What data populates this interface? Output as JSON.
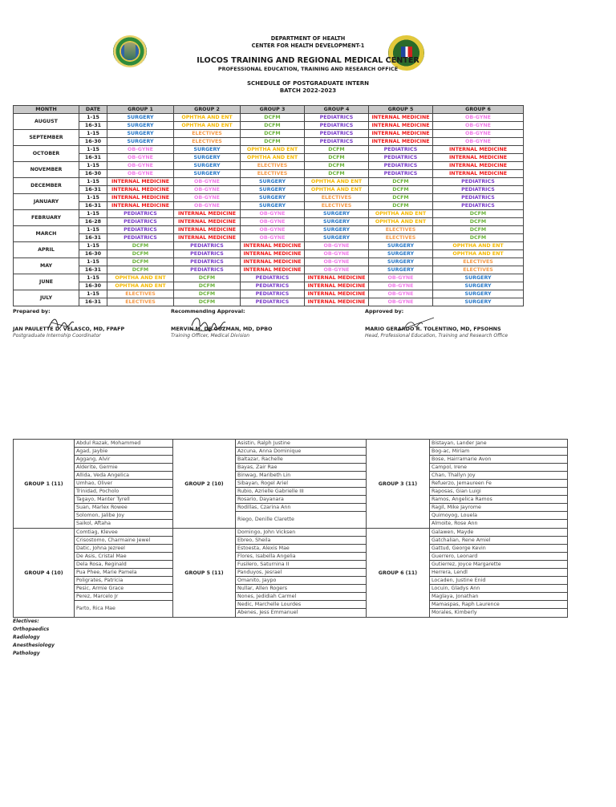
{
  "header": {
    "line1": "DEPARTMENT OF HEALTH",
    "line2": "CENTER FOR HEALTH DEVELOPMENT-1",
    "line3": "ILOCOS TRAINING AND REGIONAL MEDICAL CENTER",
    "line4": "PROFESSIONAL EDUCATION, TRAINING AND RESEARCH OFFICE",
    "line5": "SCHEDULE OF POSTGRADUATE INTERN",
    "line6": "BATCH 2022-2023",
    "logo_left": "ittrmc-seal-icon",
    "logo_right": "doh-seal-icon"
  },
  "colors": {
    "SURGERY": "#2878c8",
    "OPHTHA AND ENT": "#f5b800",
    "DCFM": "#6ab23a",
    "PEDIATRICS": "#7a3cc8",
    "INTERNAL MEDICINE": "#f01818",
    "OB-GYNE": "#f07ae8",
    "ELECTIVES": "#f59a48",
    "header_bg": "#c9c9c9"
  },
  "schedule": {
    "columns": [
      "MONTH",
      "DATE",
      "GROUP 1",
      "GROUP 2",
      "GROUP 3",
      "GROUP 4",
      "GROUP 5",
      "GROUP 6"
    ],
    "months": [
      {
        "month": "AUGUST",
        "rows": [
          {
            "date": "1-15",
            "g": [
              "SURGERY",
              "OPHTHA AND ENT",
              "DCFM",
              "PEDIATRICS",
              "INTERNAL MEDICINE",
              "OB-GYNE"
            ]
          },
          {
            "date": "16-31",
            "g": [
              "SURGERY",
              "OPHTHA AND ENT",
              "DCFM",
              "PEDIATRICS",
              "INTERNAL MEDICINE",
              "OB-GYNE"
            ]
          }
        ]
      },
      {
        "month": "SEPTEMBER",
        "rows": [
          {
            "date": "1-15",
            "g": [
              "SURGERY",
              "ELECTIVES",
              "DCFM",
              "PEDIATRICS",
              "INTERNAL MEDICINE",
              "OB-GYNE"
            ]
          },
          {
            "date": "16-30",
            "g": [
              "SURGERY",
              "ELECTIVES",
              "DCFM",
              "PEDIATRICS",
              "INTERNAL MEDICINE",
              "OB-GYNE"
            ]
          }
        ]
      },
      {
        "month": "OCTOBER",
        "rows": [
          {
            "date": "1-15",
            "g": [
              "OB-GYNE",
              "SURGERY",
              "OPHTHA AND ENT",
              "DCFM",
              "PEDIATRICS",
              "INTERNAL MEDICINE"
            ]
          },
          {
            "date": "16-31",
            "g": [
              "OB-GYNE",
              "SURGERY",
              "OPHTHA AND ENT",
              "DCFM",
              "PEDIATRICS",
              "INTERNAL MEDICINE"
            ]
          }
        ]
      },
      {
        "month": "NOVEMBER",
        "rows": [
          {
            "date": "1-15",
            "g": [
              "OB-GYNE",
              "SURGERY",
              "ELECTIVES",
              "DCFM",
              "PEDIATRICS",
              "INTERNAL MEDICINE"
            ]
          },
          {
            "date": "16-30",
            "g": [
              "OB-GYNE",
              "SURGERY",
              "ELECTIVES",
              "DCFM",
              "PEDIATRICS",
              "INTERNAL MEDICINE"
            ]
          }
        ]
      },
      {
        "month": "DECEMBER",
        "rows": [
          {
            "date": "1-15",
            "g": [
              "INTERNAL MEDICINE",
              "OB-GYNE",
              "SURGERY",
              "OPHTHA AND ENT",
              "DCFM",
              "PEDIATRICS"
            ]
          },
          {
            "date": "16-31",
            "g": [
              "INTERNAL MEDICINE",
              "OB-GYNE",
              "SURGERY",
              "OPHTHA AND ENT",
              "DCFM",
              "PEDIATRICS"
            ]
          }
        ]
      },
      {
        "month": "JANUARY",
        "rows": [
          {
            "date": "1-15",
            "g": [
              "INTERNAL MEDICINE",
              "OB-GYNE",
              "SURGERY",
              "ELECTIVES",
              "DCFM",
              "PEDIATRICS"
            ]
          },
          {
            "date": "16-31",
            "g": [
              "INTERNAL MEDICINE",
              "OB-GYNE",
              "SURGERY",
              "ELECTIVES",
              "DCFM",
              "PEDIATRICS"
            ]
          }
        ]
      },
      {
        "month": "FEBRUARY",
        "rows": [
          {
            "date": "1-15",
            "g": [
              "PEDIATRICS",
              "INTERNAL MEDICINE",
              "OB-GYNE",
              "SURGERY",
              "OPHTHA AND ENT",
              "DCFM"
            ]
          },
          {
            "date": "16-28",
            "g": [
              "PEDIATRICS",
              "INTERNAL MEDICINE",
              "OB-GYNE",
              "SURGERY",
              "OPHTHA AND ENT",
              "DCFM"
            ]
          }
        ]
      },
      {
        "month": "MARCH",
        "rows": [
          {
            "date": "1-15",
            "g": [
              "PEDIATRICS",
              "INTERNAL MEDICINE",
              "OB-GYNE",
              "SURGERY",
              "ELECTIVES",
              "DCFM"
            ]
          },
          {
            "date": "16-31",
            "g": [
              "PEDIATRICS",
              "INTERNAL MEDICINE",
              "OB-GYNE",
              "SURGERY",
              "ELECTIVES",
              "DCFM"
            ]
          }
        ]
      },
      {
        "month": "APRIL",
        "rows": [
          {
            "date": "1-15",
            "g": [
              "DCFM",
              "PEDIATRICS",
              "INTERNAL MEDICINE",
              "OB-GYNE",
              "SURGERY",
              "OPHTHA AND ENT"
            ]
          },
          {
            "date": "16-30",
            "g": [
              "DCFM",
              "PEDIATRICS",
              "INTERNAL MEDICINE",
              "OB-GYNE",
              "SURGERY",
              "OPHTHA AND ENT"
            ]
          }
        ]
      },
      {
        "month": "MAY",
        "rows": [
          {
            "date": "1-15",
            "g": [
              "DCFM",
              "PEDIATRICS",
              "INTERNAL MEDICINE",
              "OB-GYNE",
              "SURGERY",
              "ELECTIVES"
            ]
          },
          {
            "date": "16-31",
            "g": [
              "DCFM",
              "PEDIATRICS",
              "INTERNAL MEDICINE",
              "OB-GYNE",
              "SURGERY",
              "ELECTIVES"
            ]
          }
        ]
      },
      {
        "month": "JUNE",
        "rows": [
          {
            "date": "1-15",
            "g": [
              "OPHTHA AND ENT",
              "DCFM",
              "PEDIATRICS",
              "INTERNAL MEDICINE",
              "OB-GYNE",
              "SURGERY"
            ]
          },
          {
            "date": "16-30",
            "g": [
              "OPHTHA AND ENT",
              "DCFM",
              "PEDIATRICS",
              "INTERNAL MEDICINE",
              "OB-GYNE",
              "SURGERY"
            ]
          }
        ]
      },
      {
        "month": "JULY",
        "rows": [
          {
            "date": "1-15",
            "g": [
              "ELECTIVES",
              "DCFM",
              "PEDIATRICS",
              "INTERNAL MEDICINE",
              "OB-GYNE",
              "SURGERY"
            ]
          },
          {
            "date": "16-31",
            "g": [
              "ELECTIVES",
              "DCFM",
              "PEDIATRICS",
              "INTERNAL MEDICINE",
              "OB-GYNE",
              "SURGERY"
            ]
          }
        ]
      }
    ]
  },
  "signatories": {
    "prepared": {
      "label": "Prepared by:",
      "name": "JAN PAULETTE D. VELASCO, MD, FPAFP",
      "title": "Postgraduate Internship Coordinator"
    },
    "recommending": {
      "label": "Recommending Approval:",
      "name": "MERVIN M. DE GUZMAN, MD, DPBO",
      "title": "Training Officer, Medical Division"
    },
    "approved": {
      "label": "Approved by:",
      "name": "MARIO GERARDO R. TOLENTINO, MD, FPSOHNS",
      "title": "Head, Professional Education, Training and Research Office"
    }
  },
  "roster": {
    "groups": [
      {
        "label": "GROUP 1 (11)",
        "members": [
          "Abdul Razak, Mohammed",
          "Agad, Jaybie",
          "Aggang, Alvir",
          "Alderite, Germie",
          "Allida, Veda Angelica",
          "Umhao, Oliver",
          "Trinidad, Pocholo",
          "Tagayo, Manter Tyrell",
          "Suan, Marlex Rowee",
          "Solomon, Jalibe Joy",
          "Saikol, Aftaha"
        ]
      },
      {
        "label": "GROUP 2 (10)",
        "members": [
          "Asistin, Ralph Justine",
          "Azcuna, Anna Dominique",
          "Baltazar, Rachelle",
          "Bayas, Zair Rae",
          "Binwag, Maribeth Lin",
          "Sibayan, Rogel Ariel",
          "Rubio, Azrielle Gabrielle III",
          "Rosario, Dayanara",
          "Rodillas, Czarina Ann",
          "Riego, Denille Clarette"
        ]
      },
      {
        "label": "GROUP 3 (11)",
        "members": [
          "Bistayan, Lander Jane",
          "Bog-ac, Miriam",
          "Bose, Hairramarie Avon",
          "Campol, Irene",
          "Chan, Thallyn Joy",
          "Refuerzo, Jemaureen Fe",
          "Raposas, Gian Luigi",
          "Ramos, Angelica Ramos",
          "Ragil, Mike Jayrome",
          "Quimoyog, Louela",
          "Almoite, Rose Ann"
        ]
      },
      {
        "label": "GROUP 4 (10)",
        "members": [
          "Comtiag, Klevee",
          "Crisostomo, Charmaine Jewel",
          "Datic, Johna Jezreel",
          "De Asis, Cristal Mae",
          "Dela Rosa, Reginald",
          "Pua Phee, Marie Pamela",
          "Poligrates, Patricia",
          "Pesic, Armie Grace",
          "Perez, Marcelo Jr",
          "Parto, Rica Mae"
        ]
      },
      {
        "label": "GROUP 5 (11)",
        "members": [
          "Domingo, John Vicksen",
          "Ebreo, Sheila",
          "Estoesta, Alexis Mae",
          "Flores, Isabella Angelia",
          "Fusilero, Saturnina II",
          "Panduyos, Jesrael",
          "Omanito, Jaypo",
          "Nullar, Allen Rogers",
          "Nones, Jedidiah Carmel",
          "Nedic, Marchelle Lourdes",
          "Abenes, Jess Emmanuel"
        ]
      },
      {
        "label": "GROUP 6 (11)",
        "members": [
          "Galawen, Mayde",
          "Gatchalian, Rene Amiel",
          "Gattud, George Kevin",
          "Guerrero, Leonard",
          "Gutierrez, Joyce Margarette",
          "Herrera, Lendl",
          "Locaden, Justine Enid",
          "Locuin, Gladys Ann",
          "Maglaya, Jonathan",
          "Mamaspas, Raph Laurence",
          "Morales, Kimberly"
        ]
      }
    ]
  },
  "electives": {
    "title": "Electives:",
    "items": [
      "Orthopaedics",
      "Radiology",
      "Anesthesiology",
      "Pathology"
    ]
  }
}
